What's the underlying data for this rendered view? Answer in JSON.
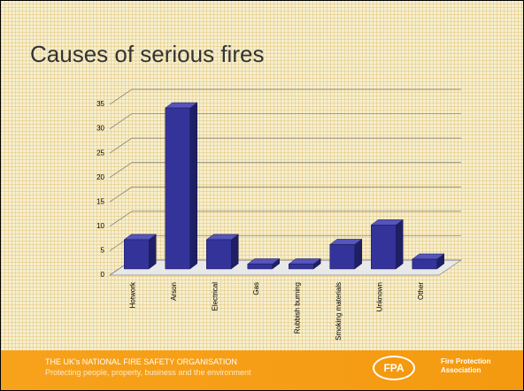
{
  "chart_data": {
    "type": "bar3d",
    "title": "Causes of serious fires",
    "categories": [
      "Hotwork",
      "Arson",
      "Electrical",
      "Gas",
      "Rubbish burning",
      "Smoking materials",
      "Unknown",
      "Other"
    ],
    "values": [
      6,
      33,
      6,
      1,
      1,
      5,
      9,
      2
    ],
    "color": "#333399",
    "ylim": [
      0,
      35
    ],
    "yticks": [
      0,
      5,
      10,
      15,
      20,
      25,
      30,
      35
    ],
    "grid": true
  },
  "footer": {
    "line1": "THE UK's NATIONAL FIRE SAFETY ORGANISATION",
    "line2": "Protecting people, property, business and the environment",
    "logo": "FPA",
    "org_line1": "Fire Protection",
    "org_line2": "Association"
  }
}
